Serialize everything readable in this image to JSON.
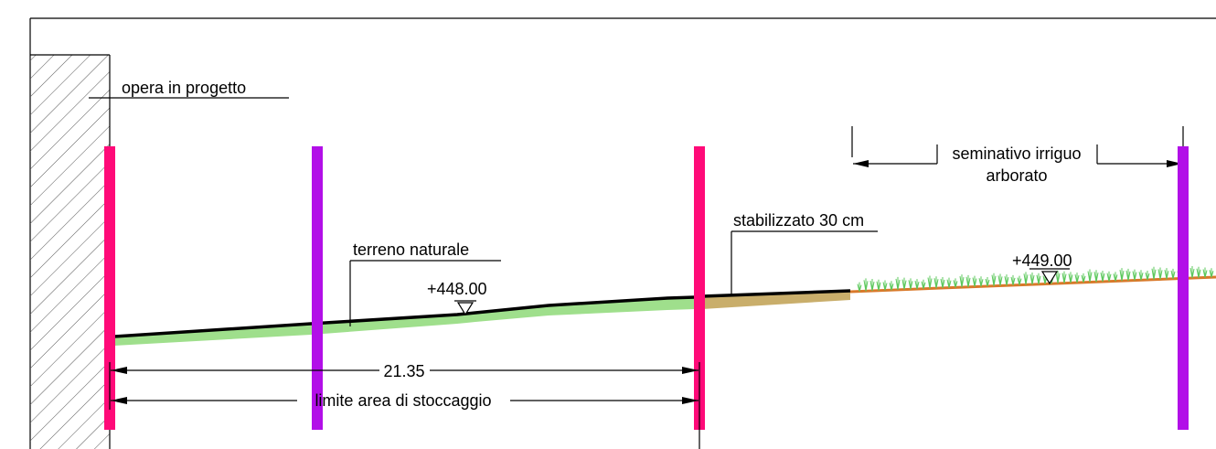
{
  "labels": {
    "building": "opera in progetto",
    "natural_ground": "terreno naturale",
    "stabilized": "stabilizzato 30 cm",
    "crop_line1": "seminativo irriguo",
    "crop_line2": "arborato",
    "elevation_1": "+448.00",
    "elevation_2": "+449.00",
    "dimension_width": "21.35",
    "storage_limit": "limite area di stoccaggio"
  },
  "colors": {
    "pole_magenta": "#ff0a78",
    "pole_purple": "#b20fe8",
    "ground_green": "#9fdf8c",
    "gravel": "#c9ae6b",
    "soil_orange": "#d9792a",
    "grass": "#5cc85c",
    "line": "#000000"
  }
}
